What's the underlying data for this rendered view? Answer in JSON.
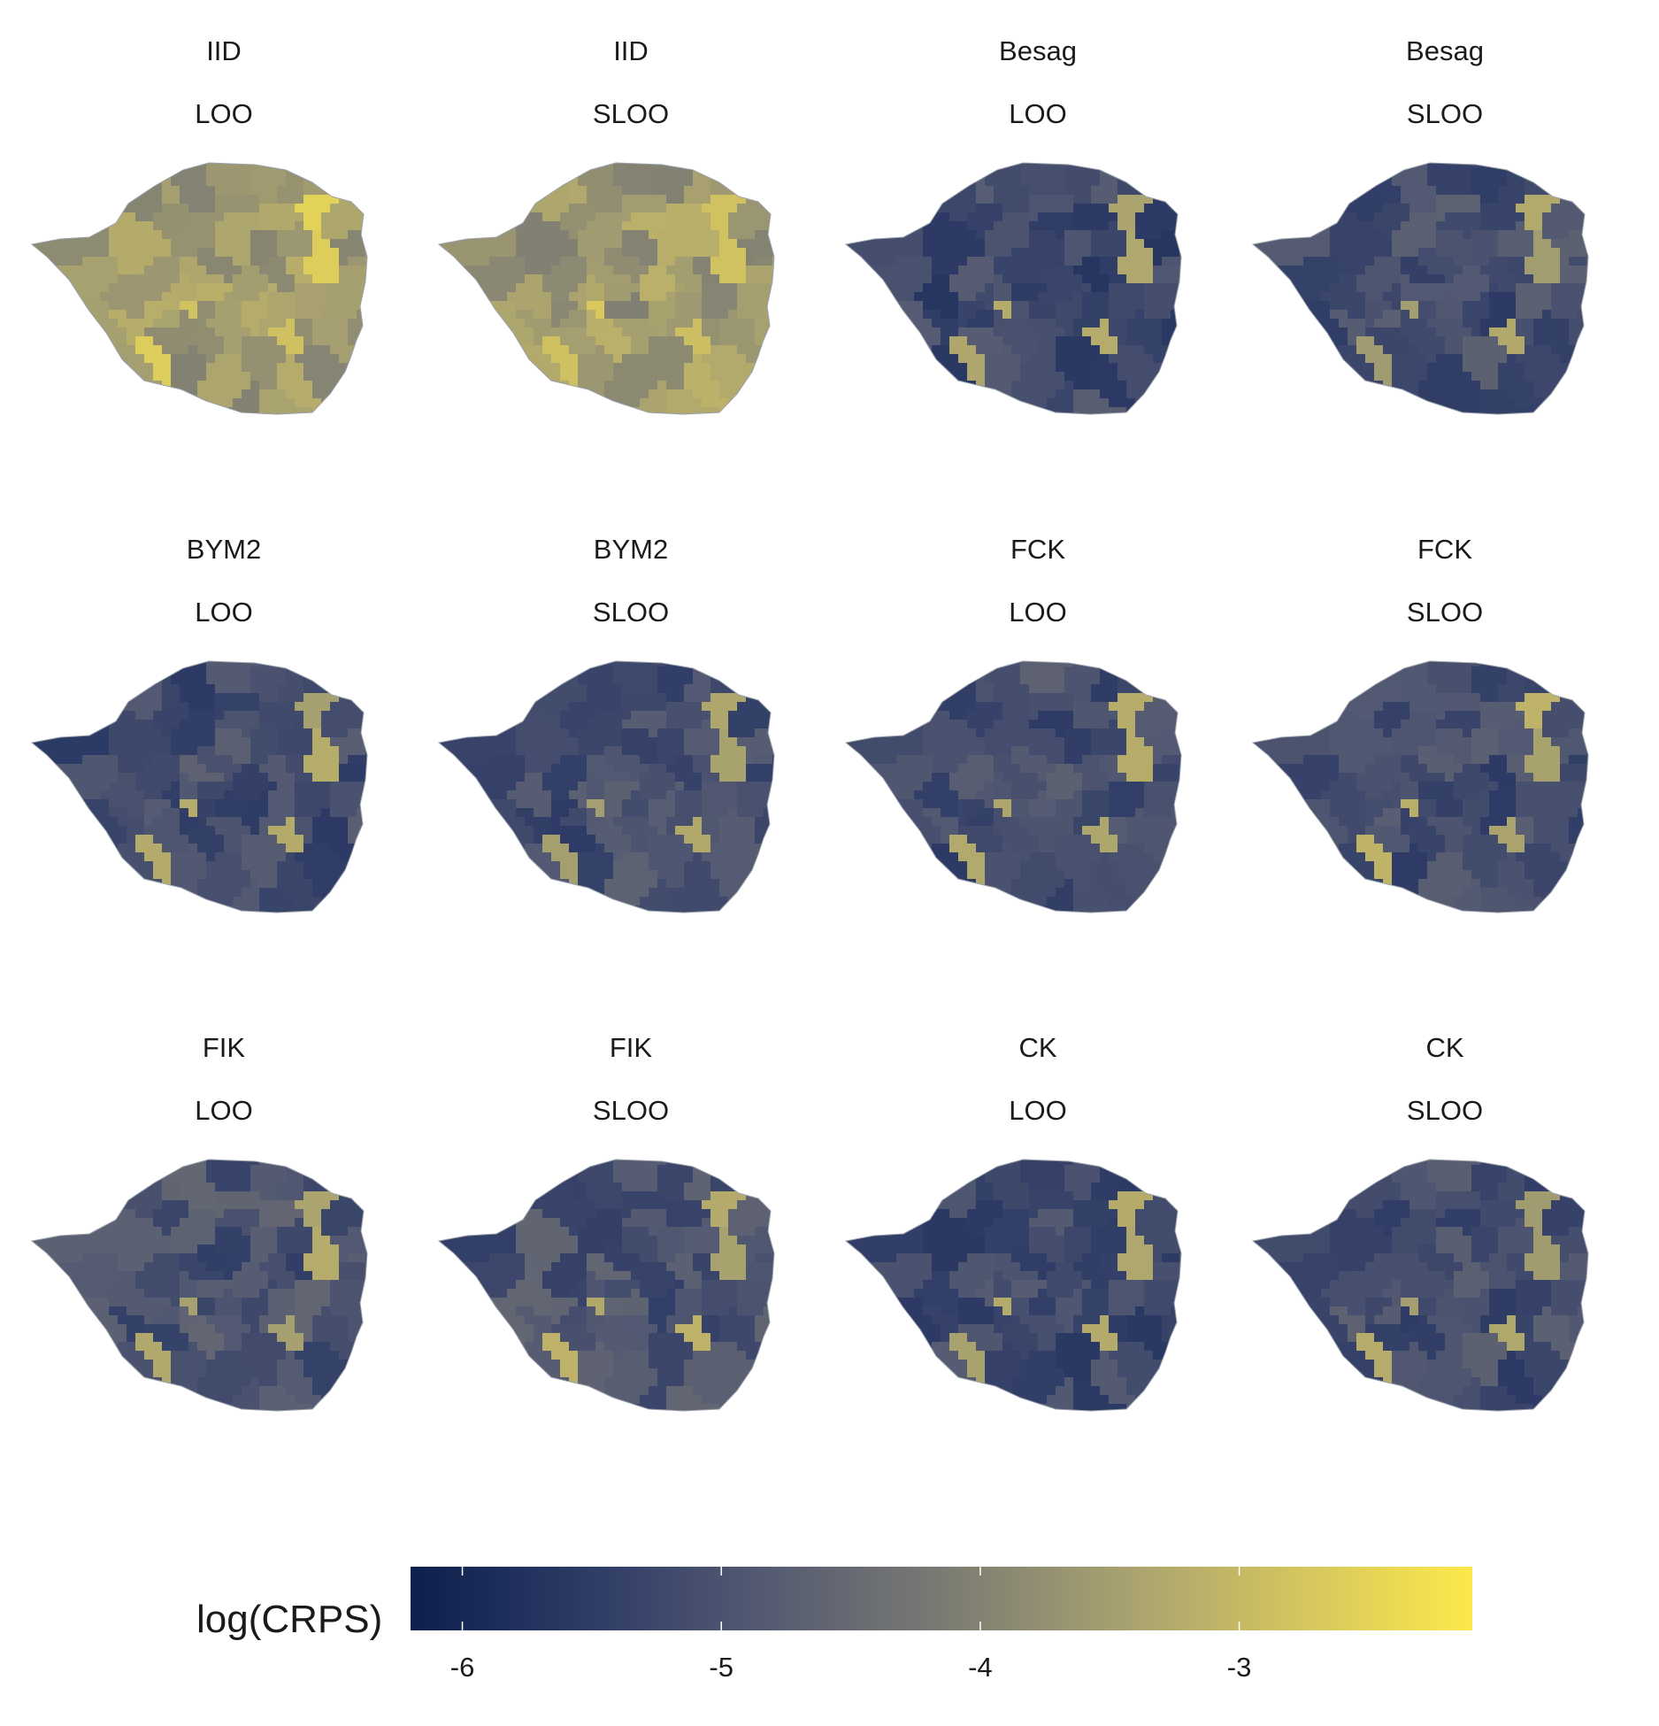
{
  "chart_data": {
    "type": "choropleth-facets",
    "facet_rows": [
      "model",
      "cv_scheme"
    ],
    "panels": [
      {
        "model": "IID",
        "cv": "LOO",
        "mean_log_crps": -3.6,
        "hot_spots": -2.7
      },
      {
        "model": "IID",
        "cv": "SLOO",
        "mean_log_crps": -3.6,
        "hot_spots": -2.7
      },
      {
        "model": "Besag",
        "cv": "LOO",
        "mean_log_crps": -5.2,
        "hot_spots": -3.4
      },
      {
        "model": "Besag",
        "cv": "SLOO",
        "mean_log_crps": -5.1,
        "hot_spots": -3.4
      },
      {
        "model": "BYM2",
        "cv": "LOO",
        "mean_log_crps": -5.1,
        "hot_spots": -3.3
      },
      {
        "model": "BYM2",
        "cv": "SLOO",
        "mean_log_crps": -5.1,
        "hot_spots": -3.3
      },
      {
        "model": "FCK",
        "cv": "LOO",
        "mean_log_crps": -5.1,
        "hot_spots": -3.3
      },
      {
        "model": "FCK",
        "cv": "SLOO",
        "mean_log_crps": -5.1,
        "hot_spots": -3.3
      },
      {
        "model": "FIK",
        "cv": "LOO",
        "mean_log_crps": -5.0,
        "hot_spots": -3.3
      },
      {
        "model": "FIK",
        "cv": "SLOO",
        "mean_log_crps": -5.0,
        "hot_spots": -3.3
      },
      {
        "model": "CK",
        "cv": "LOO",
        "mean_log_crps": -5.2,
        "hot_spots": -3.4
      },
      {
        "model": "CK",
        "cv": "SLOO",
        "mean_log_crps": -5.1,
        "hot_spots": -3.4
      }
    ],
    "legend": {
      "title": "log(CRPS)",
      "placement": "bottom",
      "range": [
        -6.2,
        -2.1
      ],
      "ticks": [
        -6,
        -5,
        -4,
        -3
      ],
      "tick_labels": [
        "-6",
        "-5",
        "-4",
        "-3"
      ],
      "colors": [
        "#0d1f4c",
        "#2d3b66",
        "#545a72",
        "#7a7a73",
        "#a6a070",
        "#d3c460",
        "#fde94a"
      ]
    }
  }
}
